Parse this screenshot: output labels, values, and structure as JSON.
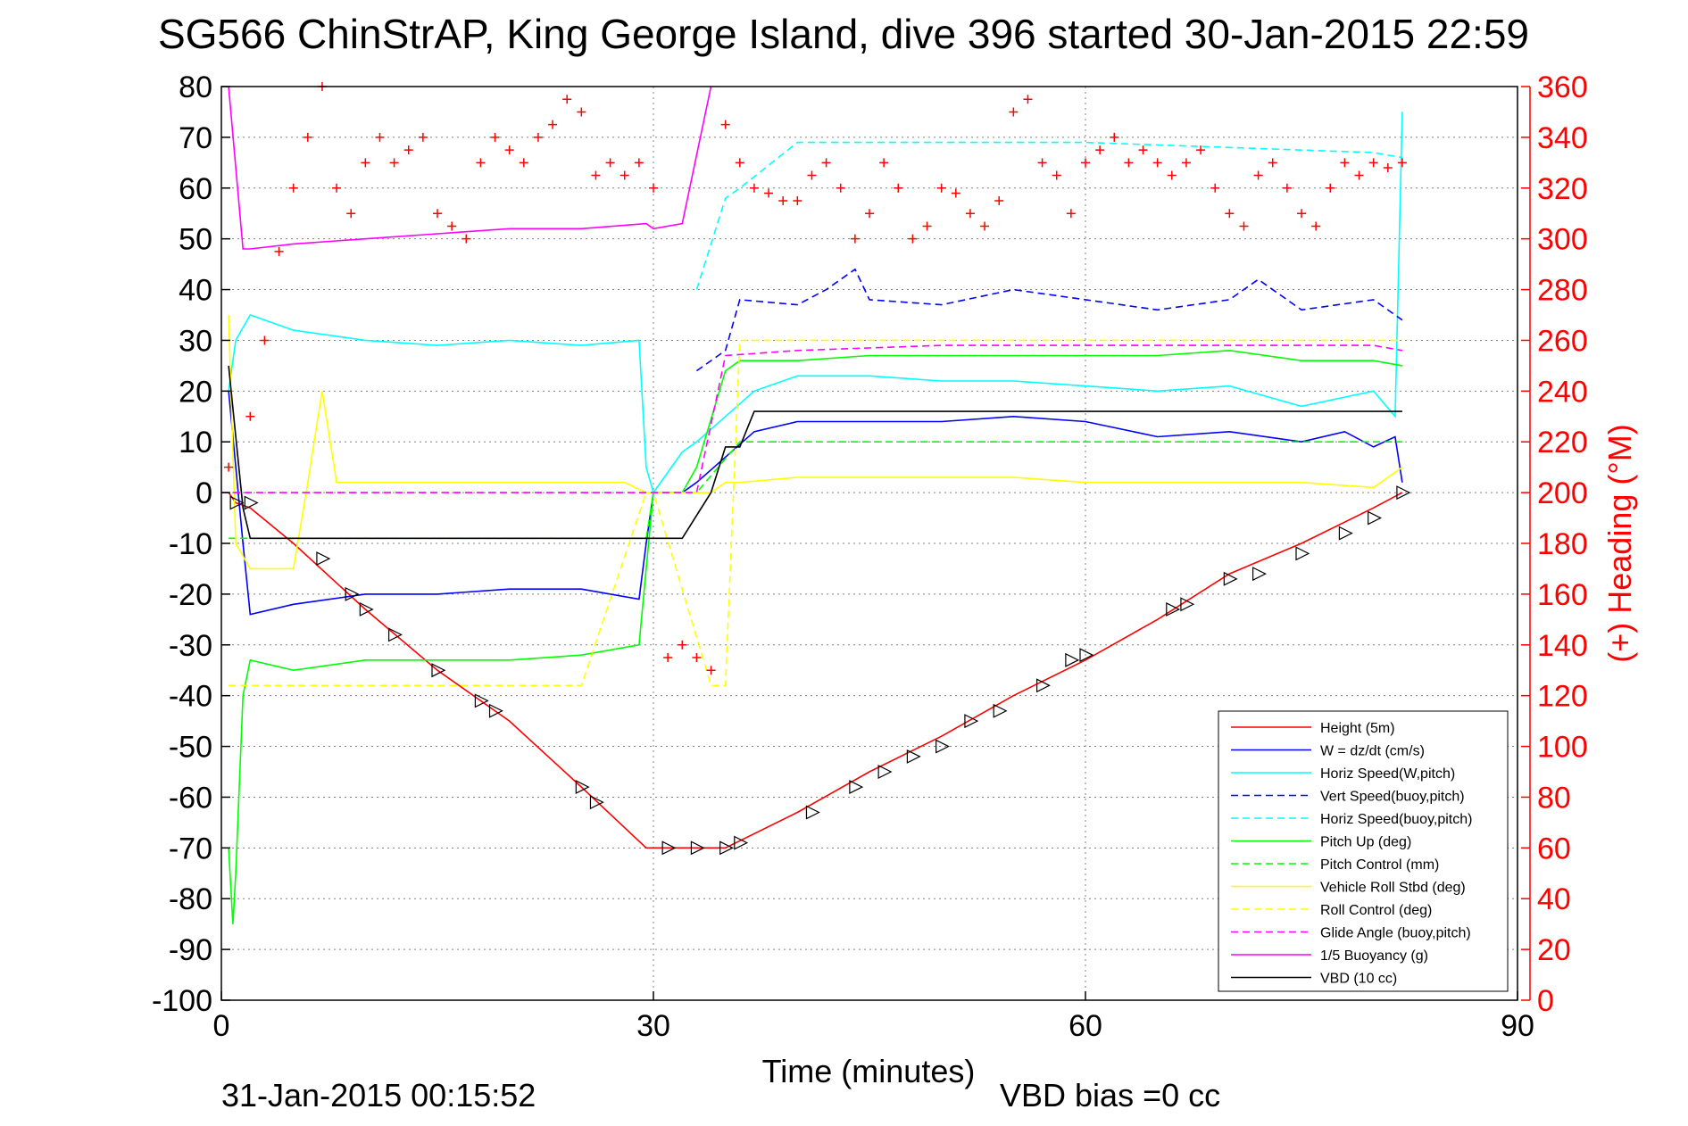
{
  "chart_data": {
    "type": "line",
    "title": "SG566 ChinStrAP, King George Island, dive 396 started 30-Jan-2015 22:59",
    "xlabel": "Time (minutes)",
    "ylabel_right": "(+) Heading (°M)",
    "footer_left": "31-Jan-2015 00:15:52",
    "footer_center": "VBD bias =0 cc",
    "xlim": [
      0,
      90
    ],
    "ylim_left": [
      -100,
      80
    ],
    "ylim_right": [
      0,
      360
    ],
    "xticks": [
      0,
      30,
      60,
      90
    ],
    "yticks_left": [
      80,
      70,
      60,
      50,
      40,
      30,
      20,
      10,
      0,
      -10,
      -20,
      -30,
      -40,
      -50,
      -60,
      -70,
      -80,
      -90,
      -100
    ],
    "yticks_right": [
      360,
      340,
      320,
      300,
      280,
      260,
      240,
      220,
      200,
      180,
      160,
      140,
      120,
      100,
      80,
      60,
      40,
      20,
      0
    ],
    "grid": true,
    "legend_position": "bottom-right",
    "colors": {
      "axis": "#000000",
      "right_axis": "#ff0000",
      "grid": "#808080"
    },
    "legend": [
      {
        "label": "Height (5m)",
        "color": "#ff0000",
        "dash": "solid"
      },
      {
        "label": "W = dz/dt (cm/s)",
        "color": "#0000ff",
        "dash": "solid"
      },
      {
        "label": "Horiz Speed(W,pitch)",
        "color": "#00ffff",
        "dash": "solid"
      },
      {
        "label": "Vert Speed(buoy,pitch)",
        "color": "#0000ff",
        "dash": "dashed"
      },
      {
        "label": "Horiz Speed(buoy,pitch)",
        "color": "#00ffff",
        "dash": "dashed"
      },
      {
        "label": "Pitch Up (deg)",
        "color": "#00ff00",
        "dash": "solid"
      },
      {
        "label": "Pitch Control (mm)",
        "color": "#00ff00",
        "dash": "dashed"
      },
      {
        "label": "Vehicle Roll Stbd (deg)",
        "color": "#ffff00",
        "dash": "solid"
      },
      {
        "label": "Roll Control (deg)",
        "color": "#ffff00",
        "dash": "dashed"
      },
      {
        "label": "Glide Angle (buoy,pitch)",
        "color": "#ff00ff",
        "dash": "dashed"
      },
      {
        "label": "1/5 Buoyancy (g)",
        "color": "#ff00ff",
        "dash": "solid"
      },
      {
        "label": "VBD (10 cc)",
        "color": "#000000",
        "dash": "solid"
      }
    ],
    "series": [
      {
        "name": "Height (5m)",
        "color": "#ff0000",
        "dash": "solid",
        "x": [
          0.5,
          1,
          2,
          5,
          10,
          15,
          20,
          25,
          29.5,
          35,
          40,
          45,
          50,
          55,
          60,
          65,
          70,
          75,
          80,
          82
        ],
        "y": [
          0,
          -2,
          -3,
          -10,
          -23,
          -35,
          -45,
          -58,
          -70,
          -70,
          -63,
          -55,
          -48,
          -40,
          -33,
          -25,
          -16,
          -10,
          -3,
          0
        ]
      },
      {
        "name": "W = dz/dt (cm/s)",
        "color": "#0000ff",
        "dash": "solid",
        "x": [
          0.5,
          1.5,
          2,
          5,
          10,
          15,
          20,
          25,
          29,
          29.5,
          30,
          32,
          33,
          35,
          37,
          40,
          45,
          50,
          55,
          60,
          65,
          70,
          75,
          78,
          80,
          81.5,
          82
        ],
        "y": [
          20,
          -10,
          -24,
          -22,
          -20,
          -20,
          -19,
          -19,
          -21,
          -10,
          0,
          0,
          2,
          7,
          12,
          14,
          14,
          14,
          15,
          14,
          11,
          12,
          10,
          12,
          9,
          11,
          2
        ]
      },
      {
        "name": "Horiz Speed(W,pitch)",
        "color": "#00ffff",
        "dash": "solid",
        "x": [
          0.5,
          1,
          2,
          5,
          10,
          15,
          20,
          25,
          29,
          29.5,
          30,
          32,
          33,
          35,
          37,
          40,
          45,
          50,
          55,
          60,
          65,
          70,
          75,
          80,
          81.5,
          82
        ],
        "y": [
          20,
          30,
          35,
          32,
          30,
          29,
          30,
          29,
          30,
          5,
          0,
          8,
          10,
          15,
          20,
          23,
          23,
          22,
          22,
          21,
          20,
          21,
          17,
          20,
          15,
          75
        ]
      },
      {
        "name": "Vert Speed(buoy,pitch)",
        "color": "#0000ff",
        "dash": "dashed",
        "x": [
          33,
          35,
          36,
          40,
          42,
          44,
          45,
          50,
          55,
          60,
          65,
          70,
          72,
          75,
          80,
          82
        ],
        "y": [
          24,
          28,
          38,
          37,
          40,
          44,
          38,
          37,
          40,
          38,
          36,
          38,
          42,
          36,
          38,
          34
        ]
      },
      {
        "name": "Horiz Speed(buoy,pitch)",
        "color": "#00ffff",
        "dash": "dashed",
        "x": [
          33,
          35,
          36,
          40,
          50,
          60,
          70,
          80,
          82
        ],
        "y": [
          40,
          58,
          60,
          69,
          69,
          69,
          68,
          67,
          66
        ]
      },
      {
        "name": "Pitch Up (deg)",
        "color": "#00ff00",
        "dash": "solid",
        "x": [
          0.5,
          0.8,
          1,
          1.5,
          2,
          5,
          10,
          15,
          20,
          25,
          29,
          29.5,
          30,
          32,
          33,
          35,
          36,
          40,
          45,
          50,
          55,
          60,
          65,
          70,
          75,
          80,
          82
        ],
        "y": [
          -70,
          -85,
          -75,
          -40,
          -33,
          -35,
          -33,
          -33,
          -33,
          -32,
          -30,
          -15,
          0,
          0,
          5,
          24,
          26,
          26,
          27,
          27,
          27,
          27,
          27,
          28,
          26,
          26,
          25
        ]
      },
      {
        "name": "Pitch Control (mm)",
        "color": "#00ff00",
        "dash": "dashed",
        "x": [
          0.5,
          2,
          10,
          20,
          29.5,
          30,
          33,
          36,
          40,
          50,
          60,
          70,
          80,
          82
        ],
        "y": [
          -9,
          -9,
          -9,
          -9,
          -9,
          0,
          0,
          10,
          10,
          10,
          10,
          10,
          10,
          10
        ]
      },
      {
        "name": "Vehicle Roll Stbd (deg)",
        "color": "#ffff00",
        "dash": "solid",
        "x": [
          0.5,
          1,
          2,
          5,
          6,
          7,
          8,
          10,
          15,
          20,
          25,
          28,
          29.5,
          32,
          34,
          35,
          36,
          40,
          45,
          50,
          55,
          60,
          65,
          70,
          75,
          80,
          82
        ],
        "y": [
          35,
          -10,
          -15,
          -15,
          2,
          20,
          2,
          2,
          2,
          2,
          2,
          2,
          0,
          0,
          0,
          2,
          2,
          3,
          3,
          3,
          3,
          2,
          2,
          2,
          2,
          1,
          5
        ]
      },
      {
        "name": "Roll Control (deg)",
        "color": "#ffff00",
        "dash": "dashed",
        "x": [
          0.5,
          1,
          2,
          5,
          10,
          15,
          20,
          25,
          29.5,
          30,
          34,
          35,
          36,
          40,
          50,
          60,
          70,
          80,
          82
        ],
        "y": [
          -38,
          -38,
          -38,
          -38,
          -38,
          -38,
          -38,
          -38,
          0,
          0,
          -38,
          -38,
          30,
          30,
          30,
          30,
          30,
          30,
          30
        ]
      },
      {
        "name": "Glide Angle (buoy,pitch)",
        "color": "#ff00ff",
        "dash": "dashed",
        "x": [
          0,
          10,
          20,
          30,
          33,
          35,
          40,
          50,
          60,
          70,
          80,
          82
        ],
        "y": [
          0,
          0,
          0,
          0,
          0,
          27,
          28,
          29,
          29,
          29,
          29,
          28
        ]
      },
      {
        "name": "1/5 Buoyancy (g)",
        "color": "#ff00ff",
        "dash": "solid",
        "x": [
          0.5,
          1.5,
          2,
          5,
          10,
          15,
          20,
          25,
          29.5,
          30,
          32,
          34
        ],
        "y": [
          80,
          48,
          48,
          49,
          50,
          51,
          52,
          52,
          53,
          52,
          53,
          80
        ]
      },
      {
        "name": "VBD (10 cc)",
        "color": "#000000",
        "dash": "solid",
        "x": [
          0.5,
          1.5,
          2,
          10,
          20,
          32,
          34,
          35,
          36,
          37,
          40,
          50,
          60,
          70,
          80,
          82
        ],
        "y": [
          25,
          -3,
          -9,
          -9,
          -9,
          -9,
          0,
          9,
          9,
          16,
          16,
          16,
          16,
          16,
          16,
          16
        ]
      }
    ],
    "heading_series": {
      "name": "(+) Heading",
      "color": "#ff0000",
      "marker": "+",
      "x": [
        0.5,
        2,
        3,
        4,
        5,
        6,
        7,
        8,
        9,
        10,
        11,
        12,
        13,
        14,
        15,
        16,
        17,
        18,
        19,
        20,
        21,
        22,
        23,
        24,
        25,
        26,
        27,
        28,
        29,
        30,
        31,
        32,
        33,
        34,
        35,
        36,
        37,
        38,
        39,
        40,
        41,
        42,
        43,
        44,
        45,
        46,
        47,
        48,
        49,
        50,
        51,
        52,
        53,
        54,
        55,
        56,
        57,
        58,
        59,
        60,
        61,
        62,
        63,
        64,
        65,
        66,
        67,
        68,
        69,
        70,
        71,
        72,
        73,
        74,
        75,
        76,
        77,
        78,
        79,
        80,
        81,
        82
      ],
      "y": [
        210,
        230,
        260,
        295,
        320,
        340,
        360,
        320,
        310,
        330,
        340,
        330,
        335,
        340,
        310,
        305,
        300,
        330,
        340,
        335,
        330,
        340,
        345,
        355,
        350,
        325,
        330,
        325,
        330,
        320,
        135,
        140,
        135,
        130,
        345,
        330,
        320,
        318,
        315,
        315,
        325,
        330,
        320,
        300,
        310,
        330,
        320,
        300,
        305,
        320,
        318,
        310,
        305,
        315,
        350,
        355,
        330,
        325,
        310,
        330,
        335,
        340,
        330,
        335,
        330,
        325,
        330,
        335,
        320,
        310,
        305,
        325,
        330,
        320,
        310,
        305,
        320,
        330,
        325,
        330,
        328,
        330
      ]
    },
    "turn_markers": {
      "color": "#000000",
      "x": [
        1,
        2,
        7,
        9,
        10,
        12,
        15,
        18,
        19,
        25,
        26,
        31,
        33,
        35,
        36,
        41,
        44,
        46,
        48,
        50,
        52,
        54,
        57,
        59,
        60,
        66,
        67,
        70,
        72,
        75,
        78,
        80,
        82
      ],
      "y": [
        -2,
        -2,
        -13,
        -20,
        -23,
        -28,
        -35,
        -41,
        -43,
        -58,
        -61,
        -70,
        -70,
        -70,
        -69,
        -63,
        -58,
        -55,
        -52,
        -50,
        -45,
        -43,
        -38,
        -33,
        -32,
        -23,
        -22,
        -17,
        -16,
        -12,
        -8,
        -5,
        0
      ]
    }
  }
}
